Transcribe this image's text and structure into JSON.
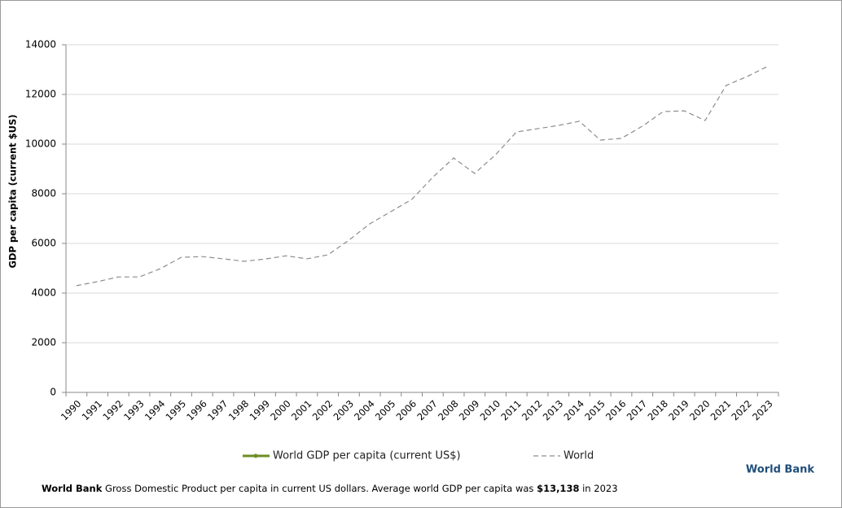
{
  "chart_data": {
    "type": "line",
    "y_label": "GDP per capita (current $US)",
    "categories": [
      "1990",
      "1991",
      "1992",
      "1993",
      "1994",
      "1995",
      "1996",
      "1997",
      "1998",
      "1999",
      "2000",
      "2001",
      "2002",
      "2003",
      "2004",
      "2005",
      "2006",
      "2007",
      "2008",
      "2009",
      "2010",
      "2011",
      "2012",
      "2013",
      "2014",
      "2015",
      "2016",
      "2017",
      "2018",
      "2019",
      "2020",
      "2021",
      "2022",
      "2023"
    ],
    "series": [
      {
        "name": "World GDP per capita (current US$)",
        "color": "#6b8e23",
        "values": [
          null,
          null,
          null,
          null,
          null,
          null,
          null,
          null,
          null,
          null,
          null,
          null,
          null,
          null,
          null,
          null,
          null,
          null,
          null,
          null,
          null,
          null,
          null,
          null,
          null,
          null,
          null,
          null,
          null,
          null,
          null,
          null,
          null,
          null
        ]
      },
      {
        "name": "World",
        "color": "#8c8c8c",
        "values": [
          4300,
          4460,
          4650,
          4650,
          4980,
          5440,
          5470,
          5380,
          5280,
          5370,
          5500,
          5380,
          5540,
          6130,
          6790,
          7280,
          7770,
          8660,
          9440,
          8820,
          9570,
          10490,
          10620,
          10750,
          10920,
          10160,
          10230,
          10720,
          11310,
          11340,
          10950,
          12360,
          12720,
          13138
        ]
      }
    ],
    "ylim": [
      0,
      14000
    ],
    "yticks": [
      0,
      2000,
      4000,
      6000,
      8000,
      10000,
      12000,
      14000
    ],
    "grid": true
  },
  "footer": {
    "source": "World Bank",
    "text": "Gross Domestic Product per capita in current US dollars.  Average world GDP per capita was",
    "highlight": "$13,138",
    "tail": "in 2023"
  },
  "brand": "World Bank"
}
